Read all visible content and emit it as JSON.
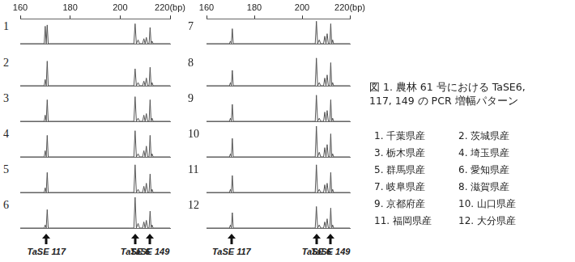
{
  "chart_data": [
    {
      "type": "line",
      "title": "1",
      "x": [
        160,
        169.6,
        170.0,
        170.4,
        170.8,
        171.2,
        204.0,
        205.5,
        206.0,
        206.5,
        207.2,
        207.8,
        209.0,
        209.5,
        210.0,
        210.5,
        211.0,
        211.6,
        212.0,
        212.4,
        212.8,
        213.2,
        220
      ],
      "values": [
        0,
        0,
        70,
        0,
        75,
        0,
        0,
        0,
        80,
        0,
        15,
        0,
        0,
        20,
        0,
        25,
        0,
        0,
        65,
        0,
        10,
        0,
        0
      ],
      "xlim": [
        160,
        220
      ],
      "xticks": [
        160,
        180,
        200,
        {
          "value": 220,
          "label": "220(bp)"
        }
      ],
      "ylim": [
        0,
        100
      ],
      "tick_labels": "x",
      "color": "#555555",
      "grid": false
    },
    {
      "type": "line",
      "title": "2",
      "x": [
        160,
        169.6,
        170.0,
        170.4,
        170.8,
        171.2,
        204.0,
        205.5,
        206.0,
        206.5,
        207.2,
        207.8,
        209.0,
        209.5,
        210.0,
        210.5,
        211.0,
        211.6,
        212.0,
        212.4,
        212.8,
        213.2,
        220
      ],
      "values": [
        0,
        0,
        20,
        0,
        80,
        0,
        0,
        0,
        55,
        0,
        10,
        0,
        0,
        15,
        0,
        25,
        0,
        0,
        60,
        0,
        10,
        0,
        0
      ],
      "xlim": [
        160,
        220
      ],
      "ylim": [
        0,
        100
      ],
      "tick_labels": false,
      "color": "#555555",
      "grid": false
    },
    {
      "type": "line",
      "title": "3",
      "x": [
        160,
        169.6,
        170.0,
        170.4,
        170.8,
        171.2,
        204.0,
        205.5,
        206.0,
        206.5,
        207.2,
        207.8,
        209.0,
        209.5,
        210.0,
        210.5,
        211.0,
        211.6,
        212.0,
        212.4,
        212.8,
        213.2,
        220
      ],
      "values": [
        0,
        0,
        20,
        0,
        70,
        0,
        0,
        0,
        80,
        0,
        10,
        0,
        0,
        20,
        0,
        25,
        0,
        0,
        70,
        0,
        10,
        0,
        0
      ],
      "xlim": [
        160,
        220
      ],
      "ylim": [
        0,
        100
      ],
      "tick_labels": false,
      "color": "#555555",
      "grid": false
    },
    {
      "type": "line",
      "title": "4",
      "x": [
        160,
        169.6,
        170.0,
        170.4,
        170.8,
        171.2,
        204.0,
        205.5,
        206.0,
        206.5,
        207.2,
        207.8,
        209.0,
        209.5,
        210.0,
        210.5,
        211.0,
        211.6,
        212.0,
        212.4,
        212.8,
        213.2,
        220
      ],
      "values": [
        0,
        0,
        20,
        0,
        70,
        0,
        0,
        0,
        85,
        0,
        10,
        0,
        0,
        20,
        0,
        35,
        0,
        0,
        70,
        0,
        10,
        0,
        0
      ],
      "xlim": [
        160,
        220
      ],
      "ylim": [
        0,
        100
      ],
      "tick_labels": false,
      "color": "#555555",
      "grid": false
    },
    {
      "type": "line",
      "title": "5",
      "x": [
        160,
        169.6,
        170.0,
        170.4,
        170.8,
        171.2,
        204.0,
        205.5,
        206.0,
        206.5,
        207.2,
        207.8,
        209.0,
        209.5,
        210.0,
        210.5,
        211.0,
        211.6,
        212.0,
        212.4,
        212.8,
        213.2,
        220
      ],
      "values": [
        0,
        0,
        15,
        0,
        65,
        0,
        0,
        0,
        90,
        0,
        10,
        0,
        0,
        20,
        0,
        30,
        0,
        0,
        60,
        0,
        10,
        0,
        0
      ],
      "xlim": [
        160,
        220
      ],
      "ylim": [
        0,
        100
      ],
      "tick_labels": false,
      "color": "#555555",
      "grid": false
    },
    {
      "type": "line",
      "title": "6",
      "x": [
        160,
        169.6,
        170.0,
        170.4,
        170.8,
        171.2,
        204.0,
        205.5,
        206.0,
        206.5,
        207.2,
        207.8,
        209.0,
        209.5,
        210.0,
        210.5,
        211.0,
        211.6,
        212.0,
        212.4,
        212.8,
        213.2,
        220
      ],
      "values": [
        0,
        0,
        10,
        0,
        60,
        0,
        0,
        0,
        100,
        0,
        15,
        0,
        0,
        20,
        0,
        25,
        0,
        0,
        55,
        0,
        10,
        0,
        0
      ],
      "xlim": [
        160,
        220
      ],
      "ylim": [
        0,
        100
      ],
      "tick_labels": false,
      "color": "#555555",
      "grid": false
    },
    {
      "type": "line",
      "title": "7",
      "x": [
        160,
        169.6,
        170.0,
        170.4,
        170.8,
        171.2,
        204.0,
        205.5,
        206.0,
        206.5,
        207.2,
        207.8,
        209.0,
        209.5,
        210.0,
        210.5,
        211.0,
        211.6,
        212.0,
        212.4,
        212.8,
        213.2,
        220
      ],
      "values": [
        0,
        0,
        10,
        0,
        60,
        0,
        0,
        0,
        90,
        0,
        15,
        0,
        0,
        30,
        0,
        40,
        0,
        0,
        80,
        0,
        15,
        0,
        0
      ],
      "xlim": [
        160,
        220
      ],
      "xticks": [
        160,
        180,
        200,
        {
          "value": 220,
          "label": "220(bp)"
        }
      ],
      "ylim": [
        0,
        100
      ],
      "tick_labels": "x",
      "color": "#555555",
      "grid": false
    },
    {
      "type": "line",
      "title": "8",
      "x": [
        160,
        169.6,
        170.0,
        170.4,
        170.8,
        171.2,
        204.0,
        205.5,
        206.0,
        206.5,
        207.2,
        207.8,
        209.0,
        209.5,
        210.0,
        210.5,
        211.0,
        211.6,
        212.0,
        212.4,
        212.8,
        213.2,
        220
      ],
      "values": [
        0,
        0,
        10,
        0,
        50,
        0,
        0,
        0,
        90,
        0,
        10,
        0,
        0,
        25,
        0,
        35,
        0,
        0,
        75,
        0,
        10,
        0,
        0
      ],
      "xlim": [
        160,
        220
      ],
      "ylim": [
        0,
        100
      ],
      "tick_labels": false,
      "color": "#555555",
      "grid": false
    },
    {
      "type": "line",
      "title": "9",
      "x": [
        160,
        169.6,
        170.0,
        170.4,
        170.8,
        171.2,
        204.0,
        205.5,
        206.0,
        206.5,
        207.2,
        207.8,
        209.0,
        209.5,
        210.0,
        210.5,
        211.0,
        211.6,
        212.0,
        212.4,
        212.8,
        213.2,
        220
      ],
      "values": [
        0,
        0,
        10,
        0,
        55,
        0,
        0,
        0,
        85,
        0,
        10,
        0,
        0,
        30,
        0,
        35,
        0,
        0,
        70,
        0,
        10,
        0,
        0
      ],
      "xlim": [
        160,
        220
      ],
      "ylim": [
        0,
        100
      ],
      "tick_labels": false,
      "color": "#555555",
      "grid": false
    },
    {
      "type": "line",
      "title": "10",
      "x": [
        160,
        169.6,
        170.0,
        170.4,
        170.8,
        171.2,
        204.0,
        205.5,
        206.0,
        206.5,
        207.2,
        207.8,
        209.0,
        209.5,
        210.0,
        210.5,
        211.0,
        211.6,
        212.0,
        212.4,
        212.8,
        213.2,
        220
      ],
      "values": [
        0,
        0,
        10,
        0,
        60,
        0,
        0,
        0,
        100,
        0,
        15,
        0,
        0,
        30,
        0,
        40,
        0,
        0,
        75,
        0,
        10,
        0,
        0
      ],
      "xlim": [
        160,
        220
      ],
      "ylim": [
        0,
        100
      ],
      "tick_labels": false,
      "color": "#555555",
      "grid": false
    },
    {
      "type": "line",
      "title": "11",
      "x": [
        160,
        169.6,
        170.0,
        170.4,
        170.8,
        171.2,
        204.0,
        205.5,
        206.0,
        206.5,
        207.2,
        207.8,
        209.0,
        209.5,
        210.0,
        210.5,
        211.0,
        211.6,
        212.0,
        212.4,
        212.8,
        213.2,
        220
      ],
      "values": [
        0,
        0,
        10,
        0,
        55,
        0,
        0,
        0,
        90,
        0,
        10,
        0,
        0,
        25,
        0,
        30,
        0,
        0,
        65,
        0,
        10,
        0,
        0
      ],
      "xlim": [
        160,
        220
      ],
      "ylim": [
        0,
        100
      ],
      "tick_labels": false,
      "color": "#555555",
      "grid": false
    },
    {
      "type": "line",
      "title": "12",
      "x": [
        160,
        169.6,
        170.0,
        170.4,
        170.8,
        171.2,
        204.0,
        205.5,
        206.0,
        206.5,
        207.2,
        207.8,
        209.0,
        209.5,
        210.0,
        210.5,
        211.0,
        211.6,
        212.0,
        212.4,
        212.8,
        213.2,
        220
      ],
      "values": [
        0,
        0,
        10,
        0,
        50,
        0,
        0,
        0,
        70,
        0,
        10,
        0,
        0,
        20,
        0,
        30,
        0,
        0,
        65,
        0,
        10,
        0,
        0
      ],
      "xlim": [
        160,
        220
      ],
      "ylim": [
        0,
        100
      ],
      "tick_labels": false,
      "color": "#555555",
      "grid": false
    }
  ],
  "markers": [
    {
      "label": "TaSE 117",
      "x": 170.5
    },
    {
      "label": "TaSE 6",
      "x": 206
    },
    {
      "label": "TaSE 149",
      "x": 212
    }
  ],
  "caption": [
    "図 1. 農林 61 号における TaSE6,",
    "117, 149 の PCR 増幅パターン"
  ],
  "legend_items": [
    "1. 千葉県産",
    "2. 茨城県産",
    "3. 栃木県産",
    "4. 埼玉県産",
    "5. 群馬県産",
    "6. 愛知県産",
    "7. 岐阜県産",
    "8. 滋賀県産",
    "9. 京都府産",
    "10. 山口県産",
    "11. 福岡県産",
    "12. 大分県産"
  ]
}
